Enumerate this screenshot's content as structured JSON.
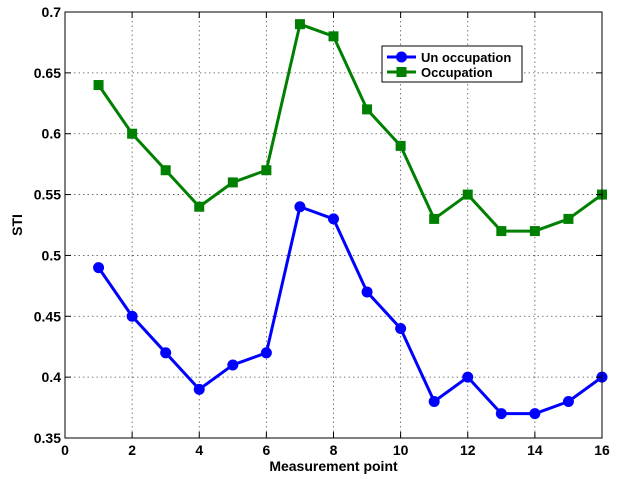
{
  "chart_data": {
    "type": "line",
    "title": "",
    "xlabel": "Measurement point",
    "ylabel": "STI",
    "xlim": [
      0,
      16
    ],
    "ylim": [
      0.35,
      0.7
    ],
    "xticks": [
      0,
      2,
      4,
      6,
      8,
      10,
      12,
      14,
      16
    ],
    "yticks": [
      0.35,
      0.4,
      0.45,
      0.5,
      0.55,
      0.6,
      0.65,
      0.7
    ],
    "xtick_labels": [
      "0",
      "2",
      "4",
      "6",
      "8",
      "10",
      "12",
      "14",
      "16"
    ],
    "ytick_labels": [
      "0.35",
      "0.4",
      "0.45",
      "0.5",
      "0.55",
      "0.6",
      "0.65",
      "0.7"
    ],
    "grid": true,
    "legend_position": "top-right",
    "x": [
      1,
      2,
      3,
      4,
      5,
      6,
      7,
      8,
      9,
      10,
      11,
      12,
      13,
      14,
      15,
      16
    ],
    "series": [
      {
        "name": "Un occupation",
        "color": "#0000ff",
        "marker": "circle",
        "values": [
          0.49,
          0.45,
          0.42,
          0.39,
          0.41,
          0.42,
          0.54,
          0.53,
          0.47,
          0.44,
          0.38,
          0.4,
          0.37,
          0.37,
          0.38,
          0.4
        ]
      },
      {
        "name": "Occupation",
        "color": "#008000",
        "marker": "square",
        "values": [
          0.64,
          0.6,
          0.57,
          0.54,
          0.56,
          0.57,
          0.69,
          0.68,
          0.62,
          0.59,
          0.53,
          0.55,
          0.52,
          0.52,
          0.53,
          0.55
        ]
      }
    ]
  }
}
